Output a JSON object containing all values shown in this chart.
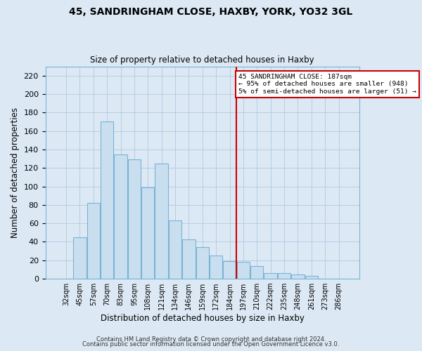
{
  "title": "45, SANDRINGHAM CLOSE, HAXBY, YORK, YO32 3GL",
  "subtitle": "Size of property relative to detached houses in Haxby",
  "xlabel": "Distribution of detached houses by size in Haxby",
  "ylabel": "Number of detached properties",
  "bar_labels": [
    "32sqm",
    "45sqm",
    "57sqm",
    "70sqm",
    "83sqm",
    "95sqm",
    "108sqm",
    "121sqm",
    "134sqm",
    "146sqm",
    "159sqm",
    "172sqm",
    "184sqm",
    "197sqm",
    "210sqm",
    "222sqm",
    "235sqm",
    "248sqm",
    "261sqm",
    "273sqm",
    "286sqm"
  ],
  "bar_values": [
    0,
    45,
    82,
    170,
    135,
    129,
    99,
    125,
    63,
    43,
    34,
    25,
    19,
    18,
    14,
    6,
    6,
    5,
    3,
    0,
    0
  ],
  "bar_color": "#c9dff0",
  "bar_edge_color": "#7ab3d3",
  "vline_color": "#cc0000",
  "annotation_title": "45 SANDRINGHAM CLOSE: 187sqm",
  "annotation_line1": "← 95% of detached houses are smaller (948)",
  "annotation_line2": "5% of semi-detached houses are larger (51) →",
  "annotation_box_color": "#ffffff",
  "annotation_box_edge_color": "#cc0000",
  "ylim": [
    0,
    230
  ],
  "yticks": [
    0,
    20,
    40,
    60,
    80,
    100,
    120,
    140,
    160,
    180,
    200,
    220
  ],
  "footer1": "Contains HM Land Registry data © Crown copyright and database right 2024.",
  "footer2": "Contains public sector information licensed under the Open Government Licence v3.0.",
  "bg_color": "#dce9f5",
  "plot_bg_color": "#dce9f5",
  "grid_color": "#b0c8e0",
  "figsize": [
    6.0,
    5.0
  ],
  "dpi": 100,
  "vline_bar_index": 12
}
